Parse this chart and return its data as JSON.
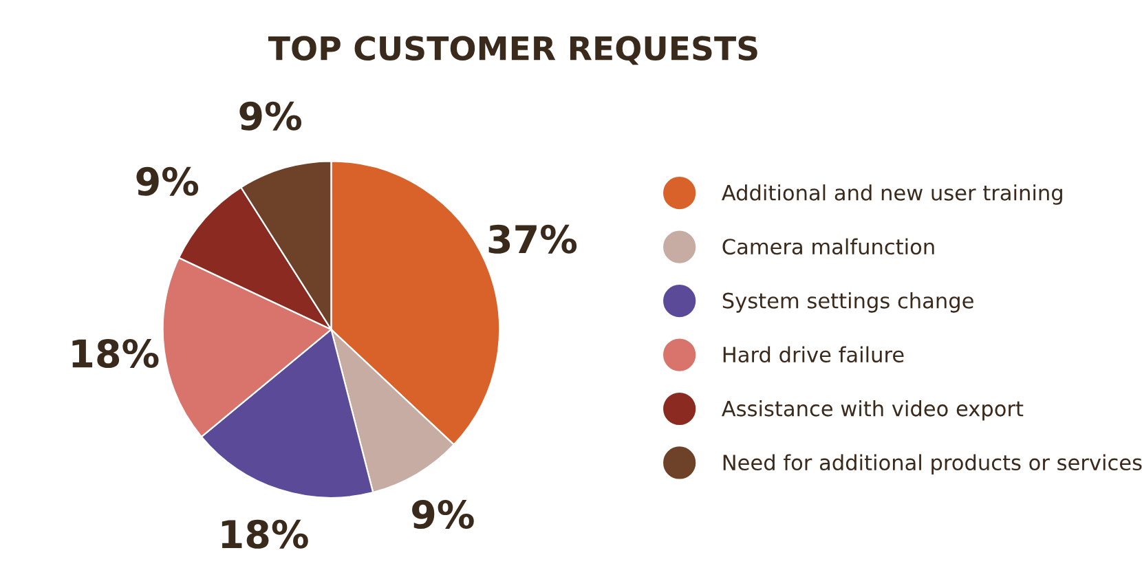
{
  "chart_data": {
    "type": "pie",
    "title": "TOP CUSTOMER REQUESTS",
    "categories": [
      "Additional and new user training",
      "Camera malfunction",
      "System settings change",
      "Hard drive failure",
      "Assistance with video export",
      "Need for additional products or services"
    ],
    "values": [
      37,
      9,
      18,
      18,
      9,
      9
    ],
    "value_labels": [
      "37%",
      "9%",
      "18%",
      "18%",
      "9%",
      "9%"
    ],
    "colors": [
      "#d9622b",
      "#c6aca3",
      "#5a4a98",
      "#d8746b",
      "#8a2a20",
      "#6e4228"
    ],
    "legend": "right"
  }
}
